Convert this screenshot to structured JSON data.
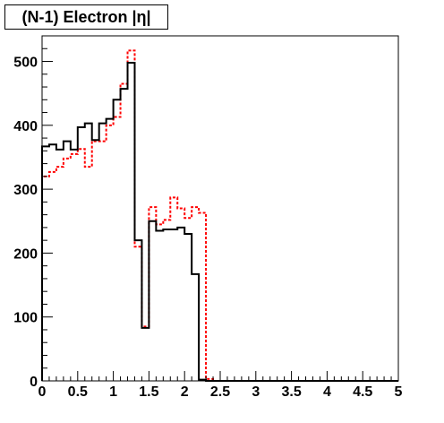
{
  "chart_data": {
    "type": "step",
    "title": "(N-1) Electron |η|",
    "xlabel": "",
    "ylabel": "",
    "xlim": [
      0,
      5
    ],
    "ylim": [
      0,
      540
    ],
    "bin_width": 0.1,
    "x_ticks": [
      "0",
      "0.5",
      "1",
      "1.5",
      "2",
      "2.5",
      "3",
      "3.5",
      "4",
      "4.5",
      "5"
    ],
    "y_ticks": [
      "0",
      "100",
      "200",
      "300",
      "400",
      "500"
    ],
    "grid": false,
    "legend": "none",
    "series": [
      {
        "style": "solid",
        "color": "#000000",
        "values": [
          367,
          370,
          362,
          375,
          362,
          397,
          403,
          377,
          403,
          410,
          440,
          457,
          498,
          220,
          83,
          250,
          235,
          237,
          237,
          240,
          230,
          167,
          2,
          0,
          0,
          0,
          0,
          0,
          0,
          0,
          0,
          0,
          0,
          0,
          0,
          0,
          0,
          0,
          0,
          0,
          0,
          0,
          0,
          0,
          0,
          0,
          0,
          0,
          0,
          0
        ]
      },
      {
        "style": "dashed",
        "color": "#ff0000",
        "values": [
          320,
          327,
          335,
          348,
          355,
          363,
          335,
          375,
          375,
          400,
          413,
          465,
          517,
          210,
          85,
          272,
          245,
          252,
          287,
          270,
          255,
          272,
          263,
          3,
          0,
          0,
          0,
          0,
          0,
          0,
          0,
          0,
          0,
          0,
          0,
          0,
          0,
          0,
          0,
          0,
          0,
          0,
          0,
          0,
          0,
          0,
          0,
          0,
          0,
          0
        ]
      }
    ]
  }
}
